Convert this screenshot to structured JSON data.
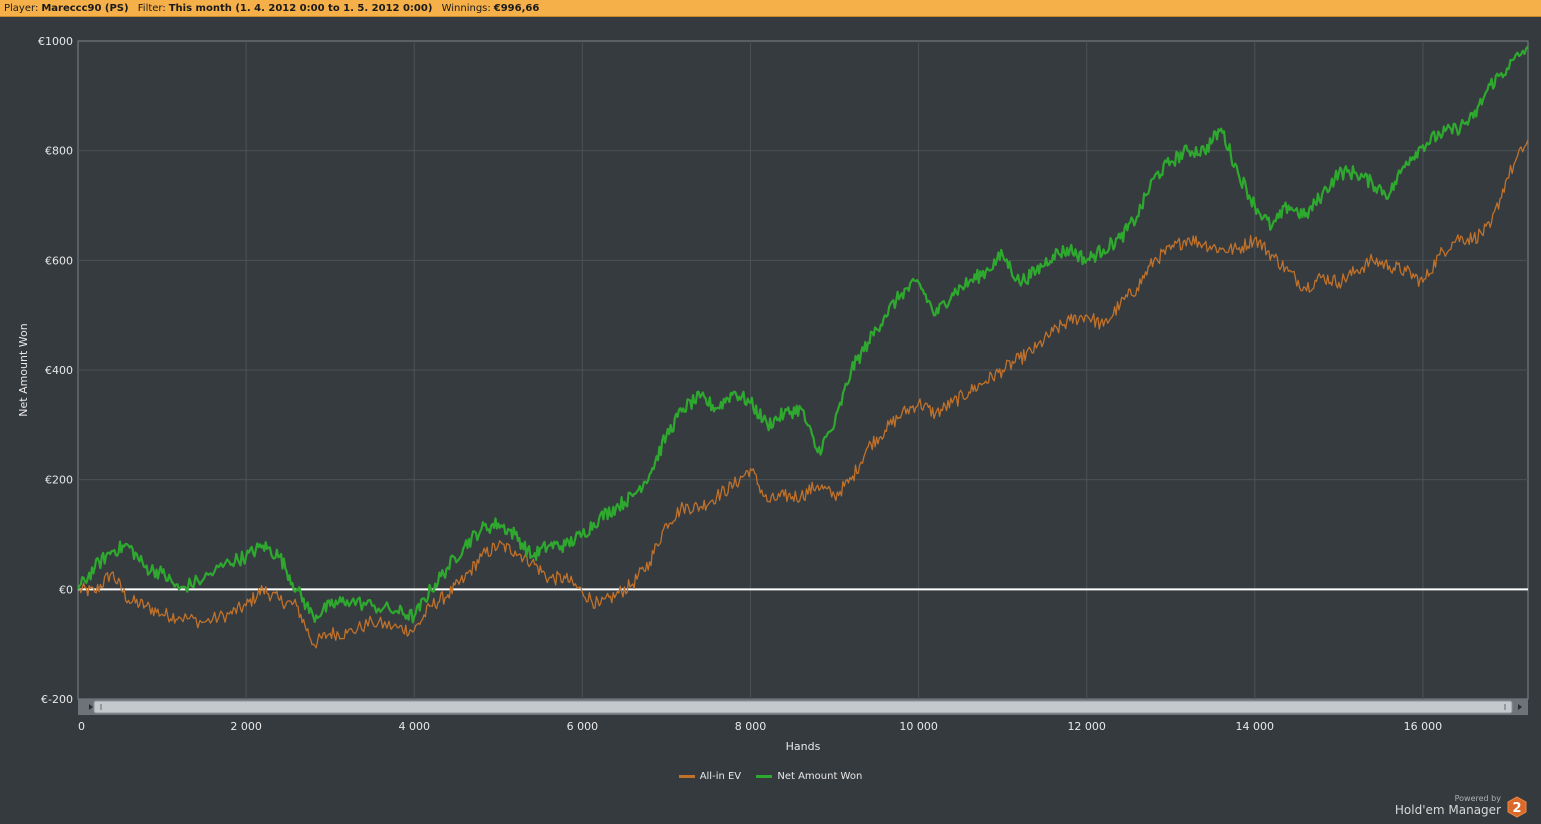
{
  "header": {
    "player_label": "Player:",
    "player_value": "Mareccc90 (PS)",
    "filter_label": "Filter:",
    "filter_value": "This month (1. 4. 2012 0:00 to 1. 5. 2012 0:00)",
    "winnings_label": "Winnings:",
    "winnings_value": "€996,66"
  },
  "chart_data": {
    "type": "line",
    "title": "",
    "xlabel": "Hands",
    "ylabel": "Net Amount Won",
    "xlim": [
      0,
      17250
    ],
    "ylim": [
      -200,
      1000
    ],
    "x_ticks": [
      0,
      2000,
      4000,
      6000,
      8000,
      10000,
      12000,
      14000,
      16000
    ],
    "x_tick_labels": [
      "0",
      "2 000",
      "4 000",
      "6 000",
      "8 000",
      "10 000",
      "12 000",
      "14 000",
      "16 000"
    ],
    "y_ticks": [
      -200,
      0,
      200,
      400,
      600,
      800,
      1000
    ],
    "y_tick_labels": [
      "€-200",
      "€0",
      "€200",
      "€400",
      "€600",
      "€800",
      "€1000"
    ],
    "grid": true,
    "legend_position": "bottom",
    "series": [
      {
        "name": "All-in EV",
        "color": "#c0712a",
        "x": [
          0,
          200,
          400,
          600,
          800,
          1000,
          1200,
          1500,
          1800,
          2000,
          2200,
          2400,
          2600,
          2800,
          3000,
          3200,
          3500,
          3800,
          4000,
          4200,
          4400,
          4600,
          4800,
          5000,
          5200,
          5400,
          5600,
          5800,
          6000,
          6200,
          6400,
          6600,
          6800,
          7000,
          7200,
          7400,
          7600,
          7800,
          8000,
          8200,
          8400,
          8600,
          8800,
          9000,
          9200,
          9400,
          9600,
          9800,
          10000,
          10200,
          10400,
          10600,
          10800,
          11000,
          11200,
          11400,
          11600,
          11800,
          12000,
          12200,
          12400,
          12600,
          12800,
          13000,
          13200,
          13400,
          13600,
          13800,
          14000,
          14200,
          14400,
          14600,
          14800,
          15000,
          15200,
          15400,
          15600,
          15800,
          16000,
          16200,
          16400,
          16600,
          16800,
          17000,
          17250
        ],
        "y": [
          0,
          -5,
          30,
          -20,
          -30,
          -45,
          -50,
          -60,
          -45,
          -30,
          0,
          -20,
          -30,
          -100,
          -80,
          -80,
          -60,
          -70,
          -75,
          -30,
          -10,
          20,
          60,
          80,
          70,
          50,
          20,
          20,
          -5,
          -30,
          -10,
          10,
          50,
          120,
          150,
          150,
          170,
          190,
          220,
          160,
          170,
          170,
          190,
          170,
          200,
          260,
          290,
          320,
          340,
          320,
          340,
          360,
          380,
          400,
          420,
          440,
          470,
          490,
          500,
          480,
          520,
          550,
          600,
          620,
          640,
          630,
          620,
          620,
          640,
          610,
          580,
          550,
          570,
          560,
          580,
          600,
          590,
          580,
          560,
          610,
          640,
          640,
          660,
          750,
          820
        ]
      },
      {
        "name": "Net Amount Won",
        "color": "#2ea82e",
        "x": [
          0,
          200,
          400,
          600,
          800,
          1000,
          1200,
          1500,
          1800,
          2000,
          2200,
          2400,
          2600,
          2800,
          3000,
          3200,
          3500,
          3800,
          4000,
          4200,
          4400,
          4600,
          4800,
          5000,
          5200,
          5400,
          5600,
          5800,
          6000,
          6200,
          6400,
          6600,
          6800,
          7000,
          7200,
          7400,
          7600,
          7800,
          8000,
          8200,
          8400,
          8600,
          8800,
          9000,
          9200,
          9400,
          9600,
          9800,
          10000,
          10200,
          10400,
          10600,
          10800,
          11000,
          11200,
          11400,
          11600,
          11800,
          12000,
          12200,
          12400,
          12600,
          12800,
          13000,
          13200,
          13400,
          13600,
          13800,
          14000,
          14200,
          14400,
          14600,
          14800,
          15000,
          15200,
          15400,
          15600,
          15800,
          16000,
          16200,
          16400,
          16600,
          16800,
          17000,
          17250
        ],
        "y": [
          0,
          40,
          70,
          80,
          40,
          30,
          0,
          20,
          50,
          60,
          80,
          60,
          0,
          -50,
          -30,
          -20,
          -30,
          -40,
          -50,
          0,
          40,
          80,
          110,
          120,
          100,
          60,
          80,
          80,
          100,
          130,
          150,
          170,
          210,
          280,
          330,
          350,
          330,
          360,
          340,
          300,
          320,
          330,
          250,
          300,
          400,
          450,
          500,
          540,
          560,
          500,
          540,
          560,
          580,
          610,
          560,
          580,
          610,
          620,
          600,
          620,
          640,
          680,
          750,
          780,
          800,
          800,
          840,
          760,
          700,
          660,
          700,
          680,
          720,
          760,
          760,
          740,
          720,
          780,
          810,
          830,
          840,
          860,
          920,
          950,
          990
        ]
      }
    ]
  },
  "legend": {
    "items": [
      {
        "label": "All-in EV",
        "color": "#c0712a"
      },
      {
        "label": "Net Amount Won",
        "color": "#2ea82e"
      }
    ]
  },
  "branding": {
    "powered_by": "Powered by",
    "product": "Hold'em Manager",
    "logo_number": "2"
  }
}
